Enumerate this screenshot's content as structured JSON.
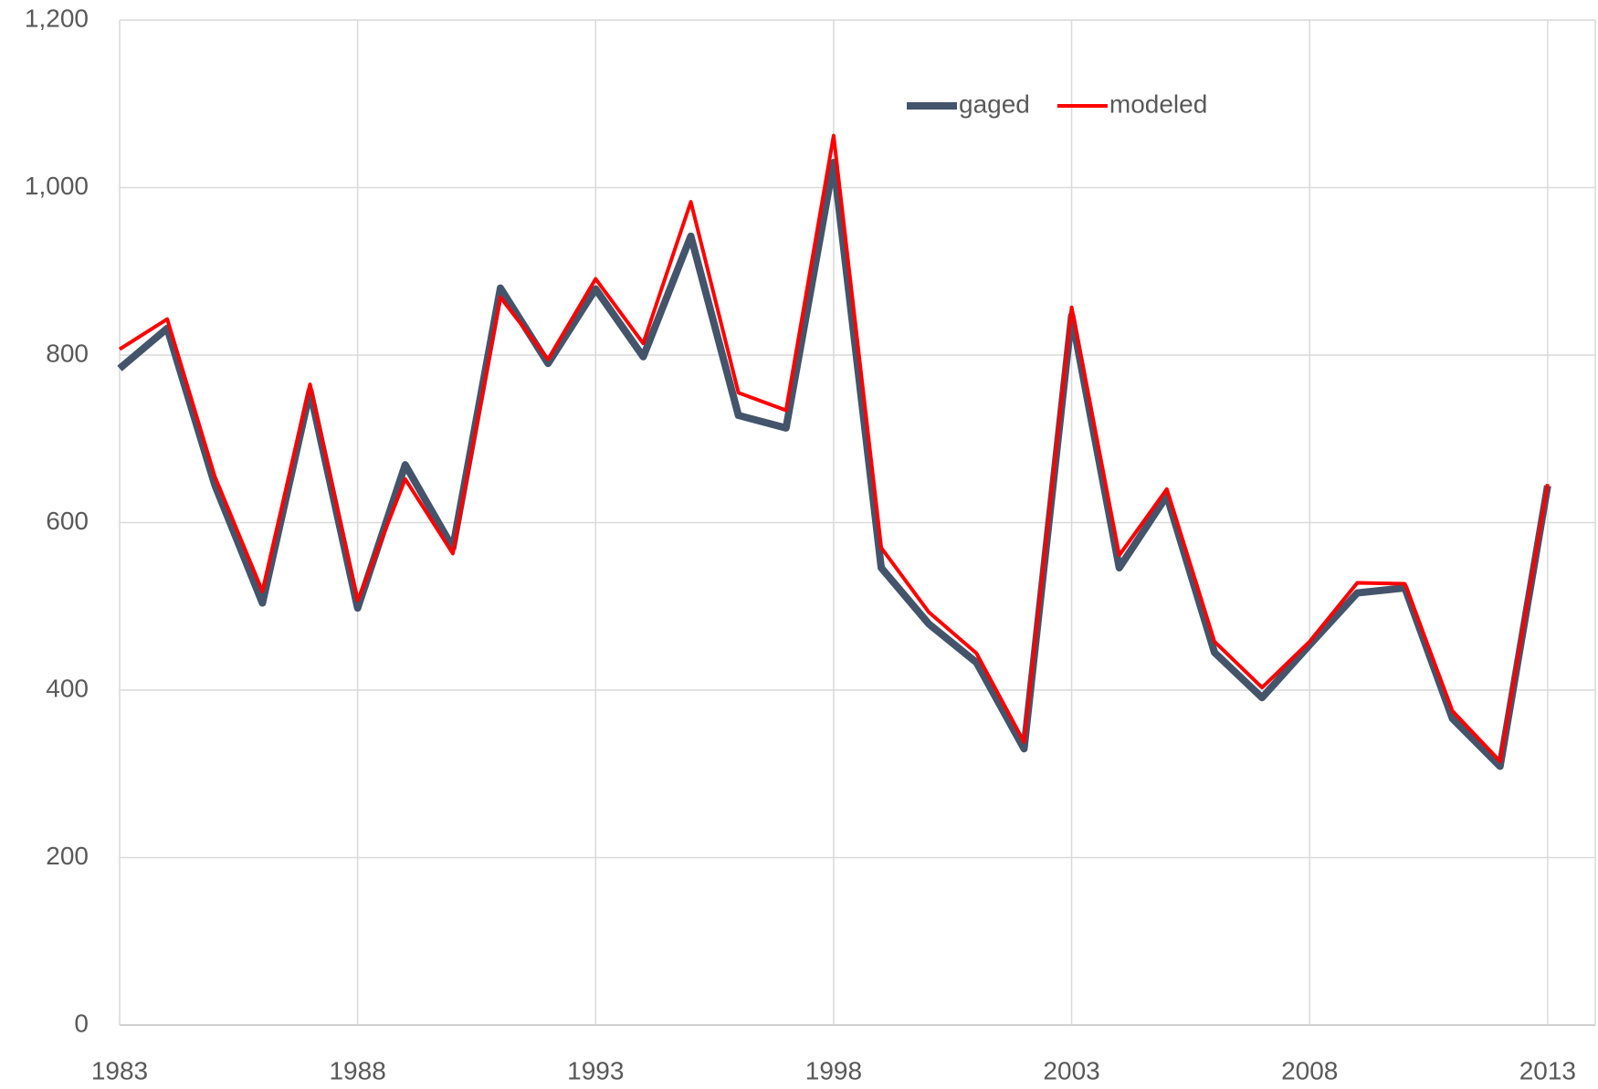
{
  "chart_data": {
    "type": "line",
    "x": [
      1983,
      1984,
      1985,
      1986,
      1987,
      1988,
      1989,
      1990,
      1991,
      1992,
      1993,
      1994,
      1995,
      1996,
      1997,
      1998,
      1999,
      2000,
      2001,
      2002,
      2003,
      2004,
      2005,
      2006,
      2007,
      2008,
      2009,
      2010,
      2011,
      2012,
      2013
    ],
    "series": [
      {
        "name": "gaged",
        "color": "#44546a",
        "values": [
          784,
          832,
          645,
          504,
          757,
          498,
          669,
          570,
          880,
          790,
          879,
          798,
          942,
          728,
          713,
          1030,
          546,
          479,
          433,
          330,
          847,
          546,
          632,
          445,
          391,
          454,
          516,
          522,
          366,
          309,
          644
        ]
      },
      {
        "name": "modeled",
        "color": "#ff0000",
        "values": [
          807,
          843,
          655,
          518,
          765,
          507,
          652,
          563,
          869,
          795,
          891,
          814,
          983,
          755,
          734,
          1062,
          570,
          493,
          444,
          338,
          857,
          561,
          640,
          458,
          403,
          458,
          528,
          527,
          375,
          315,
          646
        ]
      }
    ],
    "xlim": [
      1983,
      2014
    ],
    "xticks": [
      1983,
      1988,
      1993,
      1998,
      2003,
      2008,
      2013
    ],
    "ylim": [
      0,
      1200
    ],
    "yticks": [
      0,
      200,
      400,
      600,
      800,
      {
        "value": 1000,
        "label": "1,000"
      },
      {
        "value": 1200,
        "label": "1,200"
      }
    ],
    "grid": true,
    "legend": "top"
  }
}
